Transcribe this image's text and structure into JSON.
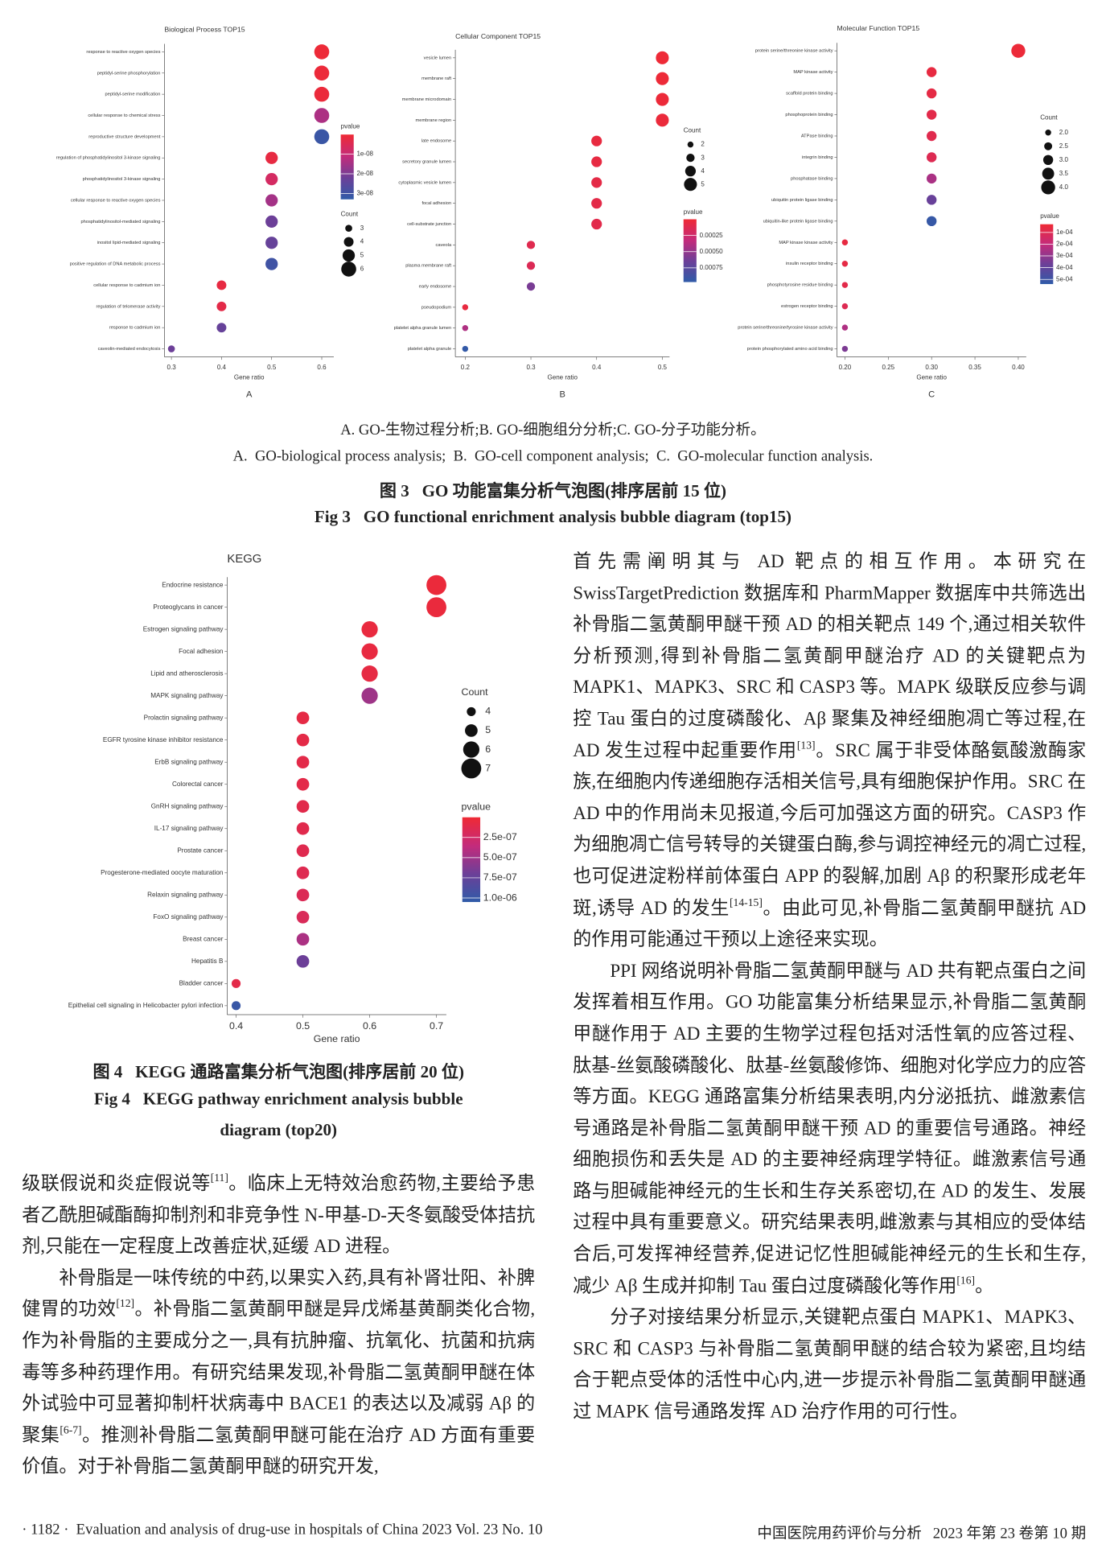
{
  "chart_data": [
    {
      "type": "bubble",
      "title": "Biological Process TOP15",
      "categories": [
        "response to reactive oxygen species",
        "peptidyl-serine phosphorylation",
        "peptidyl-serine modification",
        "cellular response to chemical stress",
        "reproductive structure development",
        "regulation of phosphatidylinositol 3-kinase signaling",
        "phosphatidylinositol 3-kinase signaling",
        "cellular response to reactive oxygen species",
        "phosphatidylinositol-mediated signaling",
        "inositol lipid-mediated signaling",
        "positive regulation of DNA metabolic process",
        "cellular response to cadmium ion",
        "regulation of telomerase activity",
        "response to cadmium ion",
        "caveolin-mediated endocytosis"
      ],
      "values": [
        0.6,
        0.6,
        0.6,
        0.6,
        0.6,
        0.5,
        0.5,
        0.5,
        0.5,
        0.5,
        0.5,
        0.4,
        0.4,
        0.4,
        0.3
      ],
      "sizes": [
        6,
        6,
        6,
        6,
        6,
        5,
        5,
        5,
        5,
        5,
        5,
        4,
        4,
        4,
        3
      ],
      "pvalues": [
        5e-10,
        8e-10,
        1e-09,
        1.4e-08,
        3.1e-08,
        2e-09,
        7e-09,
        1.5e-08,
        2.2e-08,
        2.3e-08,
        3e-08,
        2e-09,
        3e-09,
        2.3e-08,
        2.2e-08
      ],
      "xlim": [
        0.286,
        0.624
      ],
      "xticks": [
        0.3,
        0.4,
        0.5,
        0.6
      ],
      "xlabel": "Gene ratio",
      "panel_label": "A",
      "size_legend_title": "Count",
      "size_ticks": [
        3,
        4,
        5,
        6
      ],
      "color_legend_title": "pvalue",
      "clim": [
        0,
        3.3e-08
      ],
      "color_ticks": [
        {
          "value": 1e-08,
          "label": "1e-08"
        },
        {
          "value": 2e-08,
          "label": "2e-08"
        },
        {
          "value": 3e-08,
          "label": "3e-08"
        }
      ],
      "colormap": [
        "#ef2a35",
        "#c42b7b",
        "#6c3f98",
        "#2f5ba8"
      ]
    },
    {
      "type": "bubble",
      "title": "Cellular Component TOP15",
      "categories": [
        "vesicle lumen",
        "membrane raft",
        "membrane microdomain",
        "membrane region",
        "late endosome",
        "secretory granule lumen",
        "cytoplasmic vesicle lumen",
        "focal adhesion",
        "cell-substrate junction",
        "caveola",
        "plasma membrane raft",
        "early endosome",
        "pseudopodium",
        "platelet alpha granule lumen",
        "platelet alpha granule"
      ],
      "values": [
        0.5,
        0.5,
        0.5,
        0.5,
        0.4,
        0.4,
        0.4,
        0.4,
        0.4,
        0.3,
        0.3,
        0.3,
        0.2,
        0.2,
        0.2
      ],
      "sizes": [
        5,
        5,
        5,
        5,
        4,
        4,
        4,
        4,
        4,
        3,
        3,
        3,
        2,
        2,
        2
      ],
      "pvalues": [
        1e-05,
        1.5e-05,
        2e-05,
        3e-05,
        5e-05,
        6e-05,
        8e-05,
        9e-05,
        0.0001,
        0.00012,
        0.00015,
        0.0006,
        5e-05,
        0.0004,
        0.00095
      ],
      "xlim": [
        0.185,
        0.511
      ],
      "xticks": [
        0.2,
        0.3,
        0.4,
        0.5
      ],
      "xlabel": "Gene ratio",
      "panel_label": "B",
      "size_legend_title": "Count",
      "size_ticks": [
        2,
        3,
        4,
        5
      ],
      "color_legend_title": "pvalue",
      "clim": [
        0,
        0.00097
      ],
      "color_ticks": [
        0.00025,
        {
          "value": 0.0005,
          "label": "0.00050"
        },
        0.00075
      ],
      "colormap": [
        "#ef2a35",
        "#c42b7b",
        "#6c3f98",
        "#2f5ba8"
      ]
    },
    {
      "type": "bubble",
      "title": "Molecular Function TOP15",
      "categories": [
        "protein serine/threonine kinase activity",
        "MAP kinase activity",
        "scaffold protein binding",
        "phosphoprotein binding",
        "ATPase binding",
        "integrin binding",
        "phosphatase binding",
        "ubiquitin protein ligase binding",
        "ubiquitin-like protein ligase binding",
        "MAP kinase kinase activity",
        "insulin receptor binding",
        "phosphotyrosine residue binding",
        "estrogen receptor binding",
        "protein serine/threonine/tyrosine kinase activity",
        "protein phosphorylated amino acid binding"
      ],
      "values": [
        0.4,
        0.3,
        0.3,
        0.3,
        0.3,
        0.3,
        0.3,
        0.3,
        0.3,
        0.2,
        0.2,
        0.2,
        0.2,
        0.2,
        0.2
      ],
      "sizes": [
        4,
        3,
        3,
        3,
        3,
        3,
        3,
        3,
        3,
        2,
        2,
        2,
        2,
        2,
        2
      ],
      "pvalues": [
        4e-05,
        6e-05,
        7e-05,
        8e-05,
        9e-05,
        0.0001,
        0.00025,
        0.00038,
        0.00052,
        6e-05,
        7e-05,
        8e-05,
        0.0001,
        0.00024,
        0.00034
      ],
      "xlim": [
        0.1908,
        0.4092
      ],
      "xticks": [
        {
          "value": 0.2,
          "label": "0.20"
        },
        0.25,
        {
          "value": 0.3,
          "label": "0.30"
        },
        0.35,
        {
          "value": 0.4,
          "label": "0.40"
        }
      ],
      "xlabel": "Gene ratio",
      "panel_label": "C",
      "size_legend_title": "Count",
      "size_ticks": [
        {
          "value": 2,
          "label": "2.0"
        },
        2.5,
        {
          "value": 3,
          "label": "3.0"
        },
        3.5,
        {
          "value": 4,
          "label": "4.0"
        }
      ],
      "color_legend_title": "pvalue",
      "clim": [
        3e-05,
        0.00054
      ],
      "color_ticks": [
        {
          "value": 0.0001,
          "label": "1e-04"
        },
        {
          "value": 0.0002,
          "label": "2e-04"
        },
        {
          "value": 0.0003,
          "label": "3e-04"
        },
        {
          "value": 0.0004,
          "label": "4e-04"
        },
        {
          "value": 0.0005,
          "label": "5e-04"
        }
      ],
      "colormap": [
        "#ef2a35",
        "#c42b7b",
        "#6c3f98",
        "#2f5ba8"
      ]
    },
    {
      "type": "bubble",
      "title": "KEGG",
      "categories": [
        "Endocrine resistance",
        "Proteoglycans in cancer",
        "Estrogen signaling pathway",
        "Focal adhesion",
        "Lipid and atherosclerosis",
        "MAPK signaling pathway",
        "Prolactin signaling pathway",
        "EGFR tyrosine kinase inhibitor resistance",
        "ErbB signaling pathway",
        "Colorectal cancer",
        "GnRH signaling pathway",
        "IL-17 signaling pathway",
        "Prostate cancer",
        "Progesterone-mediated oocyte maturation",
        "Relaxin signaling pathway",
        "FoxO signaling pathway",
        "Breast cancer",
        "Hepatitis B",
        "Bladder cancer",
        "Epithelial cell signaling in Helicobacter pylori infection"
      ],
      "values": [
        0.7,
        0.7,
        0.6,
        0.6,
        0.6,
        0.6,
        0.5,
        0.5,
        0.5,
        0.5,
        0.5,
        0.5,
        0.5,
        0.5,
        0.5,
        0.5,
        0.5,
        0.5,
        0.4,
        0.4
      ],
      "sizes": [
        7,
        7,
        6,
        6,
        6,
        6,
        5,
        5,
        5,
        5,
        5,
        5,
        5,
        5,
        5,
        5,
        5,
        5,
        4,
        4
      ],
      "pvalues": [
        3e-08,
        4e-08,
        5e-08,
        6e-08,
        7e-08,
        5e-07,
        8e-08,
        9e-08,
        1e-07,
        1e-07,
        1.1e-07,
        1.2e-07,
        1.3e-07,
        1.4e-07,
        1.6e-07,
        1.8e-07,
        4.5e-07,
        7e-07,
        1e-07,
        1e-06
      ],
      "xlim": [
        0.3866,
        0.7149
      ],
      "xticks": [
        0.4,
        0.5,
        0.6,
        0.7
      ],
      "xlabel": "Gene ratio",
      "size_legend_title": "Count",
      "size_ticks": [
        4,
        5,
        6,
        7
      ],
      "color_legend_title": "pvalue",
      "clim": [
        0,
        1.05e-06
      ],
      "color_ticks": [
        {
          "value": 2.5e-07,
          "label": "2.5e-07"
        },
        {
          "value": 5e-07,
          "label": "5.0e-07"
        },
        {
          "value": 7.5e-07,
          "label": "7.5e-07"
        },
        {
          "value": 1e-06,
          "label": "1.0e-06"
        }
      ],
      "colormap": [
        "#ef2a35",
        "#c42b7b",
        "#6c3f98",
        "#2f5ba8"
      ]
    }
  ],
  "fig3": {
    "sub_cn": "A. GO-生物过程分析;B. GO-细胞组分分析;C. GO-分子功能分析。",
    "sub_en": "A.  GO-biological process analysis;  B.  GO-cell component analysis;  C.  GO-molecular function analysis.",
    "title_cn": "图 3   GO 功能富集分析气泡图(排序居前 15 位)",
    "title_en": "Fig 3   GO functional enrichment analysis bubble diagram (top15)"
  },
  "fig4": {
    "title_cn": "图 4   KEGG 通路富集分析气泡图(排序居前 20 位)",
    "title_en_1": "Fig 4   KEGG pathway enrichment analysis bubble",
    "title_en_2": "diagram (top20)"
  },
  "left_text": [
    [
      {
        "text": "级联假说和炎症假说等"
      },
      {
        "sup": "[11]"
      },
      {
        "text": "。临床上无特效治愈药物,主要给予患者乙酰胆碱酯酶抑制剂和非竞争性 N-甲基-D-天冬氨酸受体拮抗剂,只能在一定程度上改善症状,延缓 AD 进程。"
      }
    ],
    [
      {
        "text": "补骨脂是一味传统的中药,以果实入药,具有补肾壮阳、补脾健胃的功效"
      },
      {
        "sup": "[12]"
      },
      {
        "text": "。补骨脂二氢黄酮甲醚是异戊烯基黄酮类化合物,作为补骨脂的主要成分之一,具有抗肿瘤、抗氧化、抗菌和抗病毒等多种药理作用。有研究结果发现,补骨脂二氢黄酮甲醚在体外试验中可显著抑制杆状病毒中 BACE1 的表达以及减弱 Aβ 的聚集"
      },
      {
        "sup": "[6-7]"
      },
      {
        "text": "。推测补骨脂二氢黄酮甲醚可能在治疗 AD 方面有重要价值。对于补骨脂二氢黄酮甲醚的研究开发,"
      }
    ]
  ],
  "right_text": [
    [
      {
        "text": "首先需阐明其与 AD 靶点的相互作用。本研究在 SwissTargetPrediction 数据库和 PharmMapper 数据库中共筛选出补骨脂二氢黄酮甲醚干预 AD 的相关靶点 149 个,通过相关软件分析预测,得到补骨脂二氢黄酮甲醚治疗 AD 的关键靶点为 MAPK1、MAPK3、SRC 和 CASP3 等。MAPK 级联反应参与调控 Tau 蛋白的过度磷酸化、Aβ 聚集及神经细胞凋亡等过程,在 AD 发生过程中起重要作用"
      },
      {
        "sup": "[13]"
      },
      {
        "text": "。SRC 属于非受体酪氨酸激酶家族,在细胞内传递细胞存活相关信号,具有细胞保护作用。SRC 在 AD 中的作用尚未见报道,今后可加强这方面的研究。CASP3 作为细胞凋亡信号转导的关键蛋白酶,参与调控神经元的凋亡过程,也可促进淀粉样前体蛋白 APP 的裂解,加剧 Aβ 的积聚形成老年斑,诱导 AD 的发生"
      },
      {
        "sup": "[14-15]"
      },
      {
        "text": "。由此可见,补骨脂二氢黄酮甲醚抗 AD 的作用可能通过干预以上途径来实现。"
      }
    ],
    [
      {
        "text": "PPI 网络说明补骨脂二氢黄酮甲醚与 AD 共有靶点蛋白之间发挥着相互作用。GO 功能富集分析结果显示,补骨脂二氢黄酮甲醚作用于 AD 主要的生物学过程包括对活性氧的应答过程、肽基-丝氨酸磷酸化、肽基-丝氨酸修饰、细胞对化学应力的应答等方面。KEGG 通路富集分析结果表明,内分泌抵抗、雌激素信号通路是补骨脂二氢黄酮甲醚干预 AD 的重要信号通路。神经细胞损伤和丢失是 AD 的主要神经病理学特征。雌激素信号通路与胆碱能神经元的生长和生存关系密切,在 AD 的发生、发展过程中具有重要意义。研究结果表明,雌激素与其相应的受体结合后,可发挥神经营养,促进记忆性胆碱能神经元的生长和生存,减少 Aβ 生成并抑制 Tau 蛋白过度磷酸化等作用"
      },
      {
        "sup": "[16]"
      },
      {
        "text": "。"
      }
    ],
    [
      {
        "text": "分子对接结果分析显示,关键靶点蛋白 MAPK1、MAPK3、SRC 和 CASP3 与补骨脂二氢黄酮甲醚的结合较为紧密,且均结合于靶点受体的活性中心内,进一步提示补骨脂二氢黄酮甲醚通过 MAPK 信号通路发挥 AD 治疗作用的可行性。"
      }
    ]
  ],
  "footer": {
    "left": "· 1182 ·  Evaluation and analysis of drug-use in hospitals of China 2023 Vol. 23 No. 10",
    "right": "中国医院用药评价与分析   2023 年第 23 卷第 10 期"
  }
}
